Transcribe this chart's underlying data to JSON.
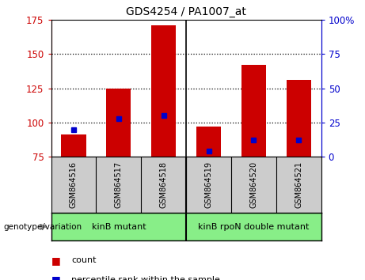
{
  "title": "GDS4254 / PA1007_at",
  "categories": [
    "GSM864516",
    "GSM864517",
    "GSM864518",
    "GSM864519",
    "GSM864520",
    "GSM864521"
  ],
  "bar_bottoms": [
    75,
    75,
    75,
    75,
    75,
    75
  ],
  "bar_tops": [
    91,
    125,
    171,
    97,
    142,
    131
  ],
  "percentile_values": [
    95,
    103,
    105,
    79,
    87,
    87
  ],
  "ylim_left": [
    75,
    175
  ],
  "ylim_right": [
    0,
    100
  ],
  "yticks_left": [
    75,
    100,
    125,
    150,
    175
  ],
  "yticks_right": [
    0,
    25,
    50,
    75,
    100
  ],
  "ytick_labels_right": [
    "0",
    "25",
    "50",
    "75",
    "100%"
  ],
  "bar_color": "#cc0000",
  "blue_color": "#0000cc",
  "group1_label": "kinB mutant",
  "group2_label": "kinB rpoN double mutant",
  "group_color": "#88ee88",
  "genotype_label": "genotype/variation",
  "legend_count": "count",
  "legend_percentile": "percentile rank within the sample",
  "label_bg_color": "#cccccc",
  "plot_bg": "#ffffff",
  "bar_width": 0.55
}
